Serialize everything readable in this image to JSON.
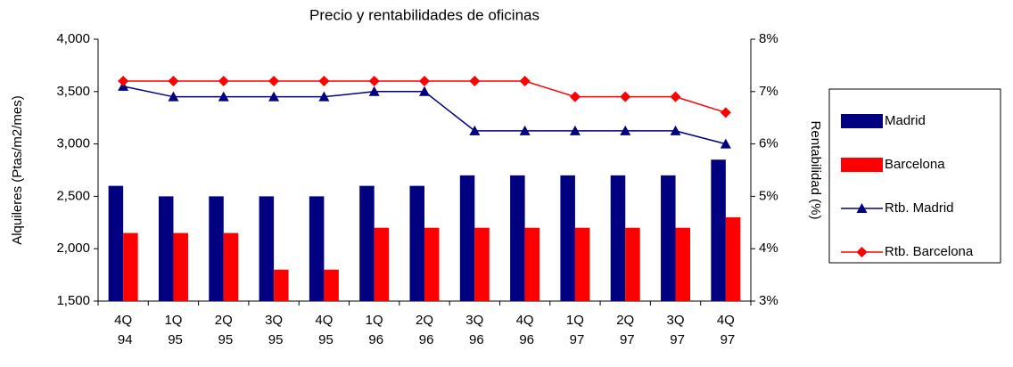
{
  "chart_data": {
    "type": "bar-line",
    "title": "Precio y rentabilidades de oficinas",
    "y_label": "Alquileres (Ptas/m2/mes)",
    "y2_label": "Rentabilidad (%)",
    "categories": [
      "4Q 94",
      "1Q 95",
      "2Q 95",
      "3Q 95",
      "4Q 95",
      "1Q 96",
      "2Q 96",
      "3Q 96",
      "4Q 96",
      "1Q 97",
      "2Q 97",
      "3Q 97",
      "4Q 97"
    ],
    "series": [
      {
        "name": "Madrid",
        "type": "bar",
        "color": "#000080",
        "values": [
          2600,
          2500,
          2500,
          2500,
          2500,
          2600,
          2600,
          2700,
          2700,
          2700,
          2700,
          2700,
          2850
        ]
      },
      {
        "name": "Barcelona",
        "type": "bar",
        "color": "#ff0000",
        "values": [
          2150,
          2150,
          2150,
          1800,
          1800,
          2200,
          2200,
          2200,
          2200,
          2200,
          2200,
          2200,
          2300
        ]
      },
      {
        "name": "Rtb. Madrid",
        "type": "line",
        "axis": "y2",
        "marker": "triangle",
        "color": "#000080",
        "values": [
          7.1,
          6.9,
          6.9,
          6.9,
          6.9,
          7.0,
          7.0,
          6.25,
          6.25,
          6.25,
          6.25,
          6.25,
          6.0
        ]
      },
      {
        "name": "Rtb. Barcelona",
        "type": "line",
        "axis": "y2",
        "marker": "diamond",
        "color": "#ff0000",
        "values": [
          7.2,
          7.2,
          7.2,
          7.2,
          7.2,
          7.2,
          7.2,
          7.2,
          7.2,
          6.9,
          6.9,
          6.9,
          6.6
        ]
      }
    ],
    "ylim": [
      1500,
      4000
    ],
    "yticks": [
      {
        "value": 1500,
        "label": "1,500"
      },
      {
        "value": 2000,
        "label": "2,000"
      },
      {
        "value": 2500,
        "label": "2,500"
      },
      {
        "value": 3000,
        "label": "3,000"
      },
      {
        "value": 3500,
        "label": "3,500"
      },
      {
        "value": 4000,
        "label": "4,000"
      }
    ],
    "y2lim": [
      3,
      8
    ],
    "y2ticks": [
      {
        "value": 3,
        "label": "3%"
      },
      {
        "value": 4,
        "label": "4%"
      },
      {
        "value": 5,
        "label": "5%"
      },
      {
        "value": 6,
        "label": "6%"
      },
      {
        "value": 7,
        "label": "7%"
      },
      {
        "value": 8,
        "label": "8%"
      }
    ],
    "grid": false,
    "legend": "right"
  }
}
